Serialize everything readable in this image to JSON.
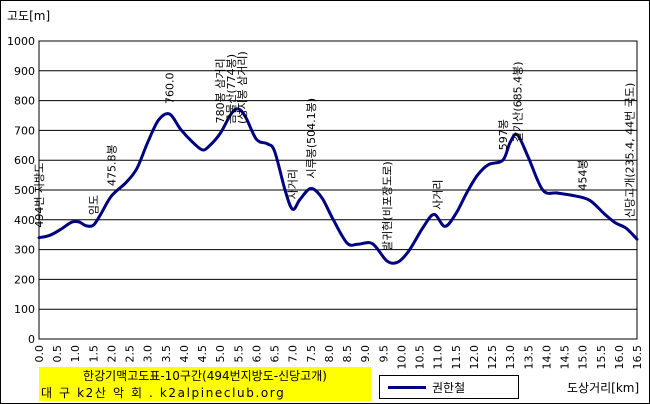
{
  "chart_data": {
    "type": "line",
    "title": "한강기맥고도표-10구간(494번지방도-신당고개)",
    "subtitle": "대 구 k2산 악 회 . k2alpineclub.org",
    "xlabel": "도상거리[km]",
    "ylabel": "고도[m]",
    "xlim": [
      0,
      16.5
    ],
    "ylim": [
      0,
      1000
    ],
    "x_ticks": [
      "0.0",
      "0.5",
      "1.0",
      "1.5",
      "2.0",
      "2.5",
      "3.0",
      "3.5",
      "4.0",
      "4.5",
      "5.0",
      "5.5",
      "6.0",
      "6.5",
      "7.0",
      "7.5",
      "8.0",
      "8.5",
      "9.0",
      "9.5",
      "10.0",
      "10.5",
      "11.0",
      "11.5",
      "12.0",
      "12.5",
      "13.0",
      "13.5",
      "14.0",
      "14.5",
      "15.0",
      "15.5",
      "16.0",
      "16.5"
    ],
    "y_ticks": [
      "0",
      "100",
      "200",
      "300",
      "400",
      "500",
      "600",
      "700",
      "800",
      "900",
      "1000"
    ],
    "grid": true,
    "legend_position": "bottom",
    "series": [
      {
        "name": "권한철",
        "color": "#000080",
        "x": [
          0.0,
          0.3,
          0.6,
          0.9,
          1.1,
          1.3,
          1.5,
          1.7,
          2.0,
          2.4,
          2.7,
          3.0,
          3.3,
          3.6,
          3.9,
          4.2,
          4.5,
          4.7,
          5.0,
          5.3,
          5.5,
          5.7,
          6.0,
          6.3,
          6.5,
          6.8,
          7.0,
          7.2,
          7.5,
          7.8,
          8.1,
          8.5,
          8.8,
          9.2,
          9.6,
          9.9,
          10.2,
          10.6,
          10.9,
          11.2,
          11.5,
          11.8,
          12.1,
          12.4,
          12.8,
          13.0,
          13.2,
          13.5,
          13.9,
          14.3,
          14.8,
          15.2,
          15.6,
          15.9,
          16.2,
          16.5
        ],
        "y": [
          340,
          348,
          368,
          392,
          393,
          380,
          382,
          418,
          480,
          525,
          572,
          660,
          735,
          755,
          705,
          665,
          635,
          648,
          690,
          755,
          772,
          745,
          670,
          655,
          630,
          495,
          435,
          468,
          505,
          475,
          405,
          322,
          318,
          320,
          262,
          258,
          295,
          375,
          418,
          378,
          420,
          490,
          550,
          585,
          600,
          660,
          685,
          610,
          500,
          490,
          480,
          465,
          420,
          390,
          372,
          335
        ]
      }
    ],
    "annotations": [
      {
        "x": 0.0,
        "y": 340,
        "text": "494번 지방도"
      },
      {
        "x": 1.5,
        "y": 382,
        "text": "임도"
      },
      {
        "x": 2.0,
        "y": 480,
        "text": "475.8봉"
      },
      {
        "x": 3.6,
        "y": 755,
        "text": "760.0"
      },
      {
        "x": 5.0,
        "y": 690,
        "text": "780봉 삼거리"
      },
      {
        "x": 5.3,
        "y": 755,
        "text": "금물산(774봉)"
      },
      {
        "x": 5.6,
        "y": 772,
        "text": "(성지봉 삼거리)"
      },
      {
        "x": 7.0,
        "y": 435,
        "text": "사거리"
      },
      {
        "x": 7.5,
        "y": 505,
        "text": "시루봉(504.1봉)"
      },
      {
        "x": 9.6,
        "y": 262,
        "text": "발귀현(비포장도로)"
      },
      {
        "x": 11.0,
        "y": 400,
        "text": "사거리"
      },
      {
        "x": 12.8,
        "y": 600,
        "text": "597봉"
      },
      {
        "x": 13.2,
        "y": 685,
        "text": "갈기산(685.4봉)"
      },
      {
        "x": 15.0,
        "y": 465,
        "text": "454봉"
      },
      {
        "x": 16.3,
        "y": 372,
        "text": "신당고개(235.4, 44번 국도)"
      }
    ]
  }
}
